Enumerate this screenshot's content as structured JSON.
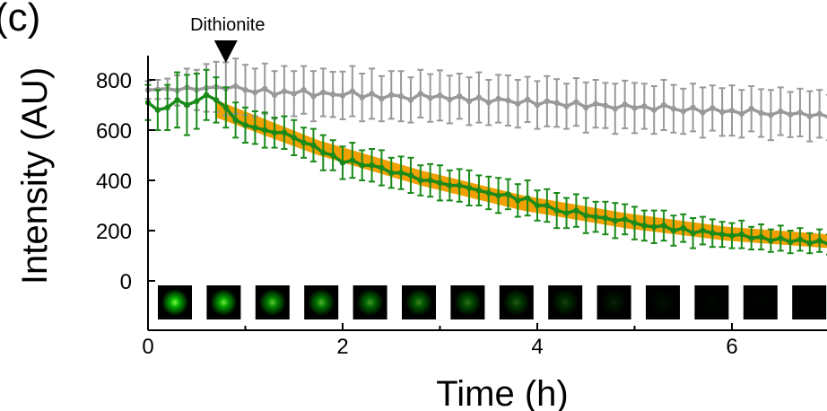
{
  "panel_label": "(c)",
  "chart_data": {
    "type": "line",
    "xlabel": "Time (h)",
    "ylabel": "Intensity (AU)",
    "xlim": [
      0,
      7
    ],
    "ylim": [
      -170,
      900
    ],
    "xticks": [
      0,
      2,
      4,
      6
    ],
    "yticks": [
      0,
      200,
      400,
      600,
      800
    ],
    "grid": false,
    "legend": "none",
    "annotation": {
      "text": "Dithionite",
      "x": 0.8
    },
    "fit_band": {
      "color": "#F0A000",
      "start": 0.7,
      "end": 7,
      "lower": [
        650,
        500,
        380,
        280,
        210,
        160,
        130
      ],
      "upper": [
        720,
        560,
        440,
        340,
        270,
        215,
        185
      ]
    },
    "series": [
      {
        "color": "#999999",
        "x": [
          0,
          0.1,
          0.2,
          0.3,
          0.4,
          0.5,
          0.6,
          0.7,
          0.8,
          0.9,
          1.0,
          1.1,
          1.2,
          1.3,
          1.4,
          1.5,
          1.6,
          1.7,
          1.8,
          1.9,
          2.0,
          2.1,
          2.2,
          2.3,
          2.4,
          2.5,
          2.6,
          2.7,
          2.8,
          2.9,
          3.0,
          3.1,
          3.2,
          3.3,
          3.4,
          3.5,
          3.6,
          3.7,
          3.8,
          3.9,
          4.0,
          4.1,
          4.2,
          4.3,
          4.4,
          4.5,
          4.6,
          4.7,
          4.8,
          4.9,
          5.0,
          5.1,
          5.2,
          5.3,
          5.4,
          5.5,
          5.6,
          5.7,
          5.8,
          5.9,
          6.0,
          6.1,
          6.2,
          6.3,
          6.4,
          6.5,
          6.6,
          6.7,
          6.8,
          6.9,
          7.0
        ],
        "y": [
          760,
          762,
          765,
          758,
          770,
          760,
          768,
          772,
          765,
          775,
          760,
          750,
          765,
          740,
          755,
          745,
          760,
          735,
          750,
          742,
          738,
          755,
          730,
          745,
          725,
          740,
          735,
          720,
          745,
          728,
          738,
          722,
          735,
          715,
          730,
          710,
          725,
          718,
          705,
          722,
          700,
          715,
          708,
          695,
          712,
          690,
          705,
          698,
          685,
          702,
          688,
          695,
          680,
          700,
          685,
          675,
          690,
          670,
          688,
          672,
          678,
          665,
          685,
          668,
          660,
          675,
          662,
          670,
          655,
          665,
          650
        ],
        "err": [
          35,
          38,
          40,
          60,
          75,
          80,
          95,
          100,
          105,
          110,
          100,
          95,
          100,
          95,
          100,
          90,
          95,
          100,
          95,
          90,
          95,
          100,
          95,
          100,
          90,
          95,
          100,
          90,
          95,
          95,
          100,
          95,
          90,
          95,
          100,
          90,
          95,
          100,
          95,
          90,
          95,
          100,
          95,
          90,
          95,
          100,
          95,
          90,
          100,
          95,
          100,
          90,
          95,
          100,
          95,
          90,
          95,
          100,
          90,
          95,
          100,
          95,
          90,
          95,
          100,
          95,
          90,
          95,
          100,
          95,
          90
        ]
      },
      {
        "color": "#1A8A1A",
        "x": [
          0,
          0.1,
          0.2,
          0.3,
          0.4,
          0.5,
          0.6,
          0.7,
          0.8,
          0.9,
          1.0,
          1.1,
          1.2,
          1.3,
          1.4,
          1.5,
          1.6,
          1.7,
          1.8,
          1.9,
          2.0,
          2.1,
          2.2,
          2.3,
          2.4,
          2.5,
          2.6,
          2.7,
          2.8,
          2.9,
          3.0,
          3.1,
          3.2,
          3.3,
          3.4,
          3.5,
          3.6,
          3.7,
          3.8,
          3.9,
          4.0,
          4.1,
          4.2,
          4.3,
          4.4,
          4.5,
          4.6,
          4.7,
          4.8,
          4.9,
          5.0,
          5.1,
          5.2,
          5.3,
          5.4,
          5.5,
          5.6,
          5.7,
          5.8,
          5.9,
          6.0,
          6.1,
          6.2,
          6.3,
          6.4,
          6.5,
          6.6,
          6.7,
          6.8,
          6.9,
          7.0
        ],
        "y": [
          710,
          680,
          690,
          720,
          700,
          715,
          740,
          720,
          690,
          640,
          620,
          610,
          600,
          590,
          590,
          570,
          550,
          540,
          510,
          500,
          470,
          480,
          460,
          460,
          450,
          430,
          430,
          420,
          400,
          400,
          390,
          380,
          380,
          370,
          360,
          350,
          340,
          345,
          320,
          330,
          300,
          300,
          280,
          270,
          280,
          260,
          255,
          250,
          240,
          245,
          230,
          220,
          215,
          220,
          200,
          210,
          190,
          200,
          190,
          185,
          180,
          185,
          170,
          175,
          160,
          170,
          155,
          165,
          150,
          160,
          145
        ],
        "err": [
          70,
          80,
          90,
          110,
          120,
          110,
          100,
          90,
          80,
          70,
          70,
          65,
          70,
          60,
          65,
          70,
          60,
          65,
          70,
          60,
          65,
          70,
          60,
          65,
          70,
          60,
          65,
          70,
          60,
          65,
          70,
          60,
          65,
          70,
          60,
          65,
          70,
          60,
          65,
          70,
          60,
          65,
          70,
          60,
          65,
          70,
          60,
          65,
          70,
          60,
          65,
          60,
          65,
          60,
          60,
          55,
          60,
          55,
          55,
          50,
          50,
          55,
          45,
          50,
          45,
          50,
          45,
          45,
          40,
          45,
          40
        ]
      }
    ],
    "image_strip": {
      "frames": 14,
      "brightness": [
        1.0,
        0.92,
        0.78,
        0.7,
        0.6,
        0.52,
        0.44,
        0.34,
        0.24,
        0.12,
        0.06,
        0.03,
        0.02,
        0.01
      ]
    }
  }
}
